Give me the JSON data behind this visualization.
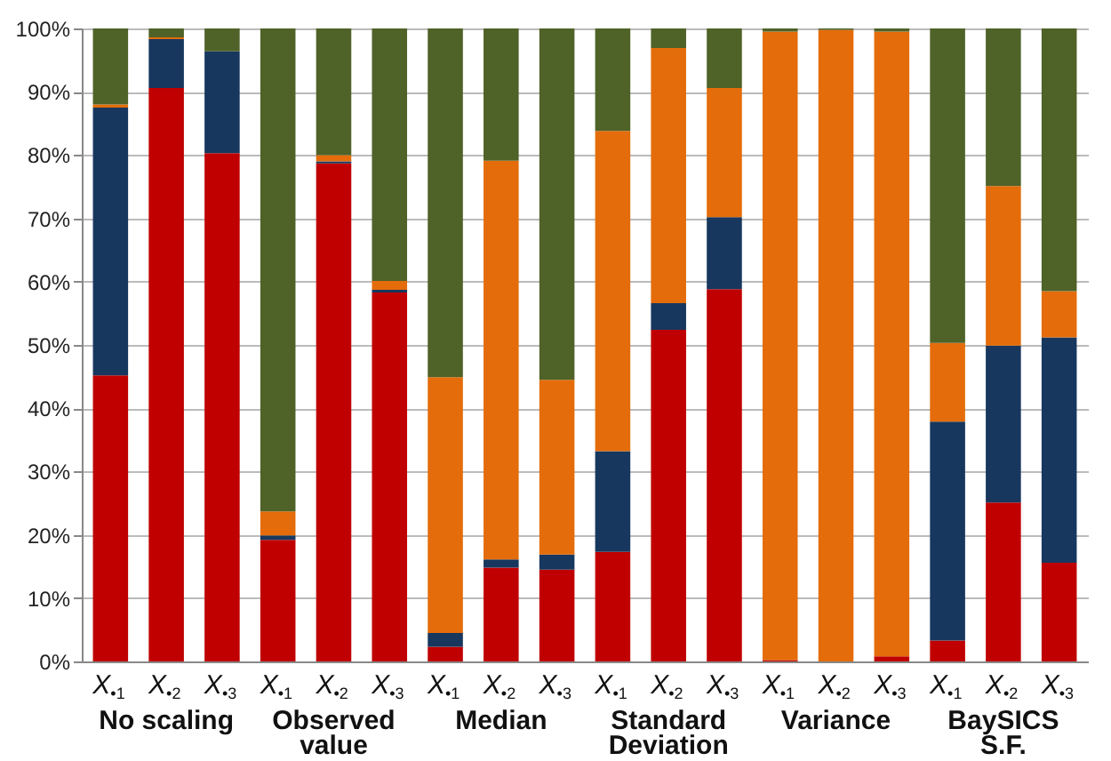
{
  "chart_data": {
    "type": "bar",
    "stacked": true,
    "grid": "y",
    "categories": [
      "X$_{•1}$",
      "X$_{•2}$",
      "X$_{•3}$",
      "X$_{•1}$",
      "X$_{•2}$",
      "X$_{•3}$",
      "X$_{•1}$",
      "X$_{•2}$",
      "X$_{•3}$",
      "X$_{•1}$",
      "X$_{•2}$",
      "X$_{•3}$",
      "X$_{•1}$",
      "X$_{•2}$",
      "X$_{•3}$",
      "X$_{•1}$",
      "X$_{•2}$",
      "X$_{•3}$"
    ],
    "series": [
      {
        "color": "#c00000",
        "values": [
          45.2,
          90.6,
          80.3,
          19.2,
          78.7,
          58.3,
          2.3,
          14.8,
          14.5,
          17.3,
          52.4,
          58.8,
          0.2,
          0,
          0.8,
          3.3,
          25.1,
          15.6
        ]
      },
      {
        "color": "#17375e",
        "values": [
          42.3,
          7.7,
          16.1,
          0.7,
          0.3,
          0.4,
          2.2,
          1.3,
          2.4,
          15.9,
          4.2,
          11.4,
          0,
          0,
          0,
          34.6,
          24.8,
          35.6
        ]
      },
      {
        "color": "#e46c0a",
        "values": [
          0.5,
          0.3,
          0,
          3.8,
          1.0,
          1.4,
          40.4,
          63.0,
          27.6,
          50.6,
          40.3,
          20.4,
          99.3,
          99.8,
          98.7,
          12.4,
          25.2,
          7.3
        ]
      },
      {
        "color": "#4f6228",
        "values": [
          12.0,
          1.4,
          3.6,
          76.3,
          20.0,
          39.9,
          55.1,
          20.9,
          55.5,
          16.2,
          3.1,
          9.4,
          0.5,
          0.2,
          0.5,
          49.7,
          24.9,
          41.5
        ]
      }
    ],
    "ylim": [
      0,
      100
    ],
    "yticks": [
      {
        "value": 0,
        "label": "0%"
      },
      {
        "value": 10,
        "label": "10%"
      },
      {
        "value": 20,
        "label": "20%"
      },
      {
        "value": 30,
        "label": "30%"
      },
      {
        "value": 40,
        "label": "40%"
      },
      {
        "value": 50,
        "label": "50%"
      },
      {
        "value": 60,
        "label": "60%"
      },
      {
        "value": 70,
        "label": "70%"
      },
      {
        "value": 80,
        "label": "80%"
      },
      {
        "value": 90,
        "label": "90%"
      },
      {
        "value": 100,
        "label": "100%"
      }
    ],
    "annotations": [
      "No scaling",
      "Observed\nvalue",
      "Median",
      "Standard\nDeviation",
      "Variance",
      "BaySICS\nS.F."
    ]
  }
}
